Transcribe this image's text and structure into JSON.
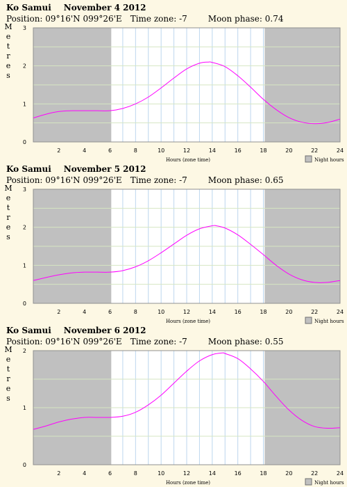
{
  "chart_data": [
    {
      "type": "line",
      "location": "Ko Samui",
      "date": "November 4 2012",
      "position_label": "Position:",
      "position": "09°16'N 099°26'E",
      "timezone_label": "Time zone:",
      "timezone": "-7",
      "moon_label": "Moon phase:",
      "moon_phase": "0.74",
      "ylabel": "Metres",
      "xlabel": "Hours (zone time)",
      "legend": "Night hours",
      "xlim": [
        0,
        24
      ],
      "ylim": [
        0,
        3
      ],
      "x_ticks": [
        2,
        4,
        6,
        8,
        10,
        12,
        14,
        16,
        18,
        20,
        22,
        24
      ],
      "y_ticks": [
        0,
        1,
        2,
        3
      ],
      "night": [
        [
          0,
          6.1
        ],
        [
          18.1,
          24
        ]
      ],
      "series": [
        {
          "x": [
            0,
            1,
            2,
            3,
            4,
            5,
            6,
            7,
            8,
            9,
            10,
            11,
            12,
            13,
            13.7,
            14,
            15,
            16,
            17,
            18,
            19,
            20,
            21,
            22,
            23,
            24
          ],
          "values": [
            0.63,
            0.73,
            0.8,
            0.82,
            0.82,
            0.82,
            0.82,
            0.88,
            1.0,
            1.18,
            1.42,
            1.68,
            1.92,
            2.07,
            2.1,
            2.09,
            1.98,
            1.74,
            1.44,
            1.12,
            0.85,
            0.64,
            0.52,
            0.48,
            0.51,
            0.6
          ]
        }
      ]
    },
    {
      "type": "line",
      "location": "Ko Samui",
      "date": "November 5 2012",
      "position_label": "Position:",
      "position": "09°16'N 099°26'E",
      "timezone_label": "Time zone:",
      "timezone": "-7",
      "moon_label": "Moon phase:",
      "moon_phase": "0.65",
      "ylabel": "Metres",
      "xlabel": "Hours (zone time)",
      "legend": "Night hours",
      "xlim": [
        0,
        24
      ],
      "ylim": [
        0,
        3
      ],
      "x_ticks": [
        2,
        4,
        6,
        8,
        10,
        12,
        14,
        16,
        18,
        20,
        22,
        24
      ],
      "y_ticks": [
        0,
        1,
        2,
        3
      ],
      "night": [
        [
          0,
          6.1
        ],
        [
          18.1,
          24
        ]
      ],
      "series": [
        {
          "x": [
            0,
            1,
            2,
            3,
            4,
            5,
            6,
            7,
            8,
            9,
            10,
            11,
            12,
            13,
            14,
            14.3,
            15,
            16,
            17,
            18,
            19,
            20,
            21,
            22,
            23,
            24
          ],
          "values": [
            0.6,
            0.68,
            0.75,
            0.8,
            0.82,
            0.82,
            0.82,
            0.86,
            0.96,
            1.12,
            1.33,
            1.56,
            1.79,
            1.96,
            2.04,
            2.04,
            1.98,
            1.8,
            1.55,
            1.28,
            1.0,
            0.77,
            0.62,
            0.55,
            0.55,
            0.6
          ]
        }
      ]
    },
    {
      "type": "line",
      "location": "Ko Samui",
      "date": "November 6 2012",
      "position_label": "Position:",
      "position": "09°16'N 099°26'E",
      "timezone_label": "Time zone:",
      "timezone": "-7",
      "moon_label": "Moon phase:",
      "moon_phase": "0.55",
      "ylabel": "Metres",
      "xlabel": "Hours (zone time)",
      "legend": "Night hours",
      "xlim": [
        0,
        24
      ],
      "ylim": [
        0,
        2
      ],
      "x_ticks": [
        2,
        4,
        6,
        8,
        10,
        12,
        14,
        16,
        18,
        20,
        22,
        24
      ],
      "y_ticks": [
        0,
        1,
        2
      ],
      "night": [
        [
          0,
          6.1
        ],
        [
          18.1,
          24
        ]
      ],
      "series": [
        {
          "x": [
            0,
            1,
            2,
            3,
            4,
            5,
            6,
            7,
            8,
            9,
            10,
            11,
            12,
            13,
            14,
            14.8,
            15,
            16,
            17,
            18,
            19,
            20,
            21,
            22,
            23,
            24
          ],
          "values": [
            0.62,
            0.68,
            0.75,
            0.8,
            0.83,
            0.83,
            0.83,
            0.85,
            0.92,
            1.05,
            1.22,
            1.43,
            1.64,
            1.82,
            1.93,
            1.96,
            1.95,
            1.86,
            1.68,
            1.46,
            1.2,
            0.96,
            0.78,
            0.67,
            0.64,
            0.65
          ]
        }
      ]
    }
  ]
}
